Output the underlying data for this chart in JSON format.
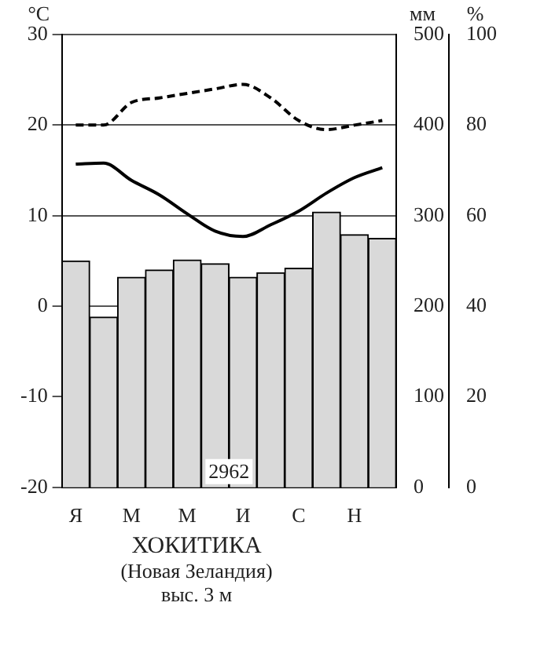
{
  "chart_data": {
    "type": "bar",
    "title": "ХОКИТИКА",
    "subtitle": "(Новая Зеландия)",
    "ylabel": "°C",
    "y2label": "мм",
    "y3label": "%",
    "categories": [
      "Я",
      null,
      "М",
      null,
      "М",
      null,
      "И",
      null,
      "С",
      null,
      "Н",
      null
    ],
    "series": [
      {
        "axis": "y2",
        "color": "#d9d9d9",
        "values": [
          250,
          188,
          232,
          240,
          251,
          247,
          232,
          237,
          242,
          304,
          279,
          275
        ]
      },
      {
        "type": "line",
        "axis": "y",
        "color": "#000000",
        "line_style": "solid",
        "values": [
          15.7,
          15.8,
          13.9,
          12.3,
          10.2,
          8.3,
          7.7,
          9.0,
          10.5,
          12.5,
          14.2,
          15.3
        ]
      },
      {
        "type": "line",
        "axis": "y3",
        "color": "#000000",
        "line_style": "dashed",
        "values": [
          80,
          80,
          85,
          86,
          87,
          88,
          89,
          86,
          81,
          79,
          80,
          81
        ]
      }
    ],
    "ylim": [
      -20,
      30
    ],
    "yticks": [
      -20,
      -10,
      0,
      10,
      20,
      30
    ],
    "y2lim": [
      0,
      500
    ],
    "y2ticks": [
      0,
      100,
      200,
      300,
      400,
      500
    ],
    "y3lim": [
      0,
      100
    ],
    "y3ticks": [
      0,
      20,
      40,
      60,
      80,
      100
    ],
    "grid": "y",
    "marker": "none",
    "legend": false,
    "annotations": [
      "2962",
      "выс. 3 м"
    ]
  }
}
